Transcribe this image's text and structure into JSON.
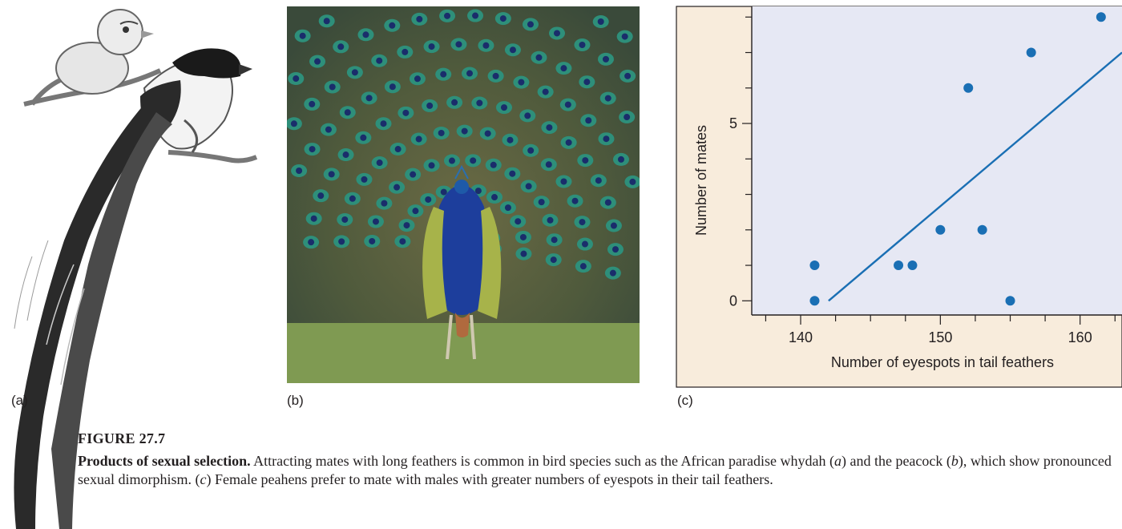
{
  "panels": {
    "a_label": "(a)",
    "b_label": "(b)",
    "c_label": "(c)"
  },
  "caption": {
    "figure_number": "FIGURE 27.7",
    "lead": "Products of sexual selection.",
    "s1": " Attracting mates with long feathers is common in bird species such as the African paradise whydah (",
    "a": "a",
    "s2": ") and the peacock (",
    "b": "b",
    "s3": "), which show pronounced sexual dimorphism. (",
    "c": "c",
    "s4": ") Female peahens prefer to mate with males with greater numbers of eyespots in their tail feathers."
  },
  "colors": {
    "plot_bg": "#e6e8f4",
    "frame_bg": "#f8ecdc",
    "point": "#1a6fb4",
    "line": "#1a6fb4"
  },
  "chart_data": {
    "type": "scatter",
    "xlabel": "Number of eyespots in tail feathers",
    "ylabel": "Number of mates",
    "xlim": [
      136.5,
      163
    ],
    "ylim": [
      -0.4,
      8.3
    ],
    "xticks": [
      140,
      150,
      160
    ],
    "yticks": [
      0,
      5
    ],
    "points": [
      {
        "x": 141,
        "y": 0
      },
      {
        "x": 141,
        "y": 1
      },
      {
        "x": 147,
        "y": 1
      },
      {
        "x": 148,
        "y": 1
      },
      {
        "x": 150,
        "y": 2
      },
      {
        "x": 152,
        "y": 6
      },
      {
        "x": 153,
        "y": 2
      },
      {
        "x": 155,
        "y": 0
      },
      {
        "x": 156.5,
        "y": 7
      },
      {
        "x": 161.5,
        "y": 8
      }
    ],
    "trend_line": [
      [
        142,
        0
      ],
      [
        163,
        7
      ]
    ]
  }
}
